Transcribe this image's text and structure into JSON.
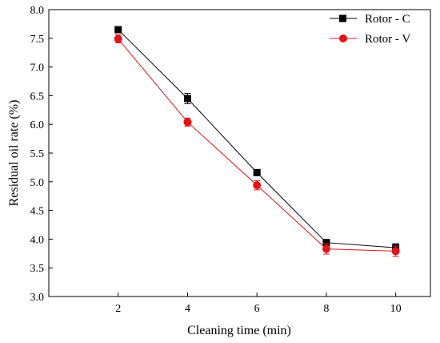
{
  "chart_data": {
    "type": "line",
    "xlabel": "Cleaning time (min)",
    "ylabel": "Residual oil rate (%)",
    "x": [
      2,
      4,
      6,
      8,
      10
    ],
    "xlim": [
      0,
      11
    ],
    "ylim": [
      3.0,
      8.0
    ],
    "x_ticks": [
      "2",
      "4",
      "6",
      "8",
      "10"
    ],
    "y_ticks": [
      "3.0",
      "3.5",
      "4.0",
      "4.5",
      "5.0",
      "5.5",
      "6.0",
      "6.5",
      "7.0",
      "7.5",
      "8.0"
    ],
    "grid": false,
    "legend_position": "top-right",
    "series": [
      {
        "name": "Rotor - C",
        "color": "#000000",
        "marker": "square",
        "values": [
          7.65,
          6.45,
          5.16,
          3.94,
          3.85
        ],
        "error": [
          0.04,
          0.09,
          0.05,
          0.05,
          0.07
        ]
      },
      {
        "name": "Rotor - V",
        "color": "#e0141a",
        "marker": "circle",
        "values": [
          7.49,
          6.04,
          4.94,
          3.83,
          3.79
        ],
        "error": [
          0.07,
          0.07,
          0.08,
          0.09,
          0.09
        ]
      }
    ]
  }
}
